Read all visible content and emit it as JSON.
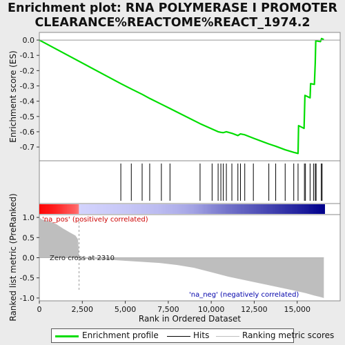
{
  "title_line1": "Enrichment plot: RNA POLYMERASE I PROMOTER",
  "title_line2": "CLEARANCE%REACTOME%REACT_1974.2",
  "colors": {
    "enrichment_line": "#00dd00",
    "hit_line": "#000000",
    "metric_fill": "#bebebe",
    "pos_label": "#cc0000",
    "neg_label": "#0000aa",
    "zero_cross_line": "#999999"
  },
  "legend": {
    "enrichment_profile": "Enrichment profile",
    "hits": "Hits",
    "ranking_metric_scores": "Ranking metric scores"
  },
  "annotations": {
    "pos_label": "'na_pos' (positively correlated)",
    "neg_label": "'na_neg' (negatively correlated)",
    "zero_cross": "Zero cross at 2310"
  },
  "chart_data": [
    {
      "type": "line",
      "name": "enrichment_profile",
      "ylabel": "Enrichment score (ES)",
      "xlim": [
        0,
        17500
      ],
      "ylim": [
        -0.79,
        0.05
      ],
      "yticks": [
        0.0,
        -0.1,
        -0.2,
        -0.3,
        -0.4,
        -0.5,
        -0.6,
        -0.7
      ],
      "ytick_labels": [
        "0.0",
        "-0.1",
        "-0.2",
        "-0.3",
        "-0.4",
        "-0.5",
        "-0.6",
        "-0.7"
      ],
      "points": [
        [
          0,
          0.0
        ],
        [
          4740,
          -0.285
        ],
        [
          5350,
          -0.32
        ],
        [
          5980,
          -0.355
        ],
        [
          6420,
          -0.382
        ],
        [
          7100,
          -0.42
        ],
        [
          7600,
          -0.448
        ],
        [
          9350,
          -0.547
        ],
        [
          10050,
          -0.582
        ],
        [
          10400,
          -0.6
        ],
        [
          10560,
          -0.604
        ],
        [
          10700,
          -0.606
        ],
        [
          10880,
          -0.6
        ],
        [
          11200,
          -0.61
        ],
        [
          11550,
          -0.625
        ],
        [
          11700,
          -0.614
        ],
        [
          11950,
          -0.62
        ],
        [
          12450,
          -0.642
        ],
        [
          13350,
          -0.68
        ],
        [
          13750,
          -0.695
        ],
        [
          14300,
          -0.718
        ],
        [
          14800,
          -0.735
        ],
        [
          15050,
          -0.742
        ],
        [
          15080,
          -0.56
        ],
        [
          15400,
          -0.578
        ],
        [
          15450,
          -0.362
        ],
        [
          15750,
          -0.378
        ],
        [
          15780,
          -0.285
        ],
        [
          16000,
          -0.29
        ],
        [
          16050,
          -0.15
        ],
        [
          16080,
          -0.005
        ],
        [
          16350,
          -0.01
        ],
        [
          16420,
          0.01
        ],
        [
          16550,
          0.003
        ]
      ]
    },
    {
      "type": "scatter",
      "name": "hits",
      "x": [
        4740,
        5350,
        5980,
        6420,
        7100,
        7600,
        9350,
        10050,
        10400,
        10560,
        10700,
        10880,
        11200,
        11550,
        11700,
        11950,
        12450,
        13350,
        13750,
        14300,
        14800,
        15050,
        15420,
        15480,
        15750,
        15950,
        16050,
        16100,
        16400,
        16450
      ]
    },
    {
      "type": "area",
      "name": "ranking_metric",
      "xlabel": "Rank in Ordered Dataset",
      "ylabel": "Ranked list metric (PreRanked)",
      "xlim": [
        0,
        17500
      ],
      "ylim": [
        -1.07,
        1.07
      ],
      "xticks": [
        0,
        2500,
        5000,
        7500,
        10000,
        12500,
        15000
      ],
      "xtick_labels": [
        "0",
        "2,500",
        "5,000",
        "7,500",
        "10,000",
        "12,500",
        "15,000"
      ],
      "yticks": [
        1.0,
        0.5,
        0.0,
        -0.5,
        -1.0
      ],
      "ytick_labels": [
        "1.0",
        "0.5",
        "0.0",
        "-0.5",
        "-1.0"
      ],
      "x": [
        0,
        150,
        600,
        1000,
        1400,
        1800,
        2100,
        2250,
        2310,
        2400,
        4000,
        5500,
        7000,
        8000,
        9000,
        10000,
        11000,
        12000,
        13000,
        14000,
        15000,
        15500,
        16000,
        16300,
        16550
      ],
      "values": [
        1.0,
        0.95,
        0.9,
        0.83,
        0.72,
        0.62,
        0.55,
        0.46,
        0.0,
        -0.02,
        -0.05,
        -0.09,
        -0.13,
        -0.18,
        -0.25,
        -0.36,
        -0.47,
        -0.56,
        -0.65,
        -0.74,
        -0.83,
        -0.88,
        -0.94,
        -0.97,
        -1.0
      ]
    }
  ]
}
